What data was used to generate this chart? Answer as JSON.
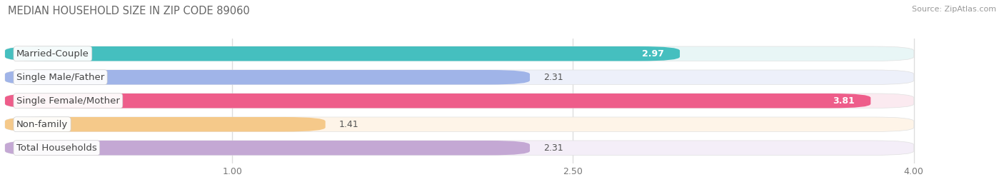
{
  "title": "MEDIAN HOUSEHOLD SIZE IN ZIP CODE 89060",
  "source": "Source: ZipAtlas.com",
  "categories": [
    "Married-Couple",
    "Single Male/Father",
    "Single Female/Mother",
    "Non-family",
    "Total Households"
  ],
  "values": [
    2.97,
    2.31,
    3.81,
    1.41,
    2.31
  ],
  "bar_colors": [
    "#45BFBF",
    "#A0B4E8",
    "#EE5D8A",
    "#F5C98A",
    "#C4A8D4"
  ],
  "bar_bg_colors": [
    "#E8F6F6",
    "#EDF0FA",
    "#FBEAF0",
    "#FEF4E8",
    "#F4EEF8"
  ],
  "xlim_min": 0,
  "xlim_max": 4.22,
  "xmin": 0,
  "xmax": 4.0,
  "xticks": [
    1.0,
    2.5,
    4.0
  ],
  "label_fontsize": 9.5,
  "value_fontsize": 9,
  "title_fontsize": 10.5,
  "bar_height": 0.62,
  "fig_bg": "#FFFFFF",
  "ax_bg": "#FFFFFF",
  "grid_color": "#DDDDDD",
  "value_inside": [
    true,
    false,
    true,
    false,
    false
  ],
  "value_colors_inside": [
    "white",
    "#555555",
    "white",
    "#555555",
    "#555555"
  ]
}
